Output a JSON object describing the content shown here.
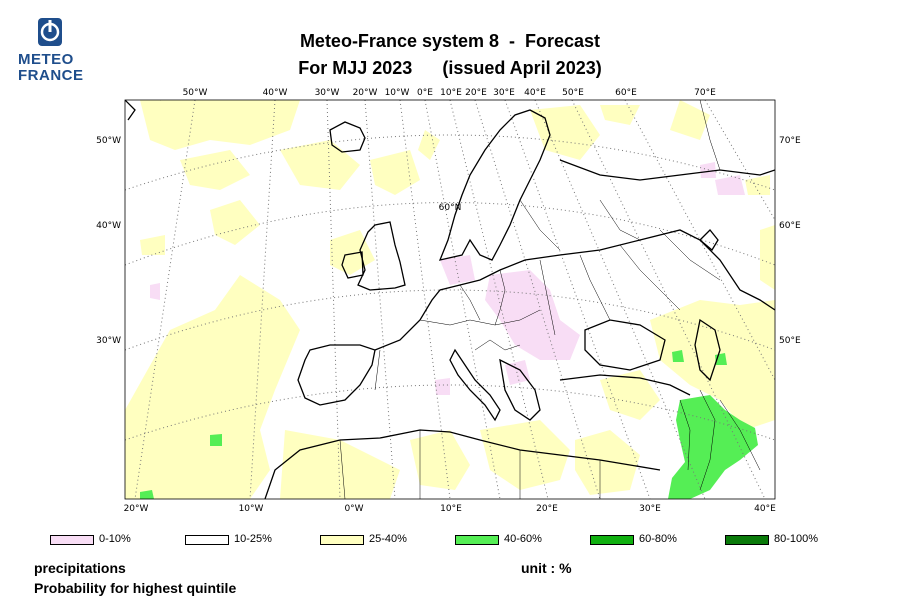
{
  "logo": {
    "line1": "METEO",
    "line2": "FRANCE",
    "color": "#1f4e8c"
  },
  "title": {
    "line1": "Meteo-France system 8  -  Forecast",
    "line2": "For MJJ 2023      (issued April 2023)"
  },
  "map": {
    "top_ticks": [
      "50°W",
      "40°W",
      "30°W",
      "20°W",
      "10°W",
      "0°E",
      "10°E",
      "20°E",
      "30°E",
      "40°E",
      "50°E",
      "60°E",
      "70°E"
    ],
    "bottom_ticks": [
      "20°W",
      "10°W",
      "0°W",
      "10°E",
      "20°E",
      "30°E",
      "40°E"
    ],
    "left_ticks": [
      "50°W",
      "40°W",
      "30°W"
    ],
    "right_ticks": [
      "70°E",
      "60°E",
      "50°E"
    ],
    "inner_label": "60°N"
  },
  "legend": [
    {
      "label": "0-10%",
      "color": "#f8ddf5"
    },
    {
      "label": "10-25%",
      "color": "#ffffff"
    },
    {
      "label": "25-40%",
      "color": "#ffffc0"
    },
    {
      "label": "40-60%",
      "color": "#55ee55"
    },
    {
      "label": "60-80%",
      "color": "#10b010"
    },
    {
      "label": "80-100%",
      "color": "#0a7a0a"
    }
  ],
  "footer": {
    "variable": "precipitations",
    "description": "Probability for highest quintile",
    "unit": "unit : %"
  }
}
